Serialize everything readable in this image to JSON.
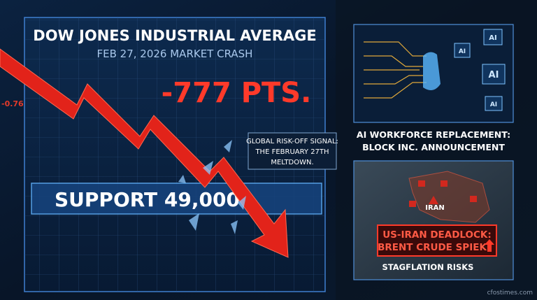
{
  "main_panel": {
    "title": "DOW JONES INDUSTRIAL AVERAGE",
    "subtitle": "FEB 27, 2026 MARKET CRASH",
    "points": "-777 PTS.",
    "support": "SUPPORT 49,000",
    "callout": {
      "lines": [
        "GLOBAL RISK-OFF SIGNAL:",
        "THE FEBRUARY 27TH",
        "MELTDOWN."
      ]
    }
  },
  "background": {
    "ticker": "-0.76"
  },
  "ai_panel": {
    "chip_label": "AI",
    "caption_lines": [
      "AI WORKFORCE REPLACEMENT:",
      "BLOCK INC. ANNOUNCEMENT"
    ]
  },
  "iran_panel": {
    "map_label": "IRAN",
    "alert_lines": [
      "US-IRAN DEADLOCK:",
      "BRENT CRUDE SPIEK"
    ],
    "caption": "STAGFLATION RISKS"
  },
  "footer": {
    "source": "cfostimes.com"
  }
}
